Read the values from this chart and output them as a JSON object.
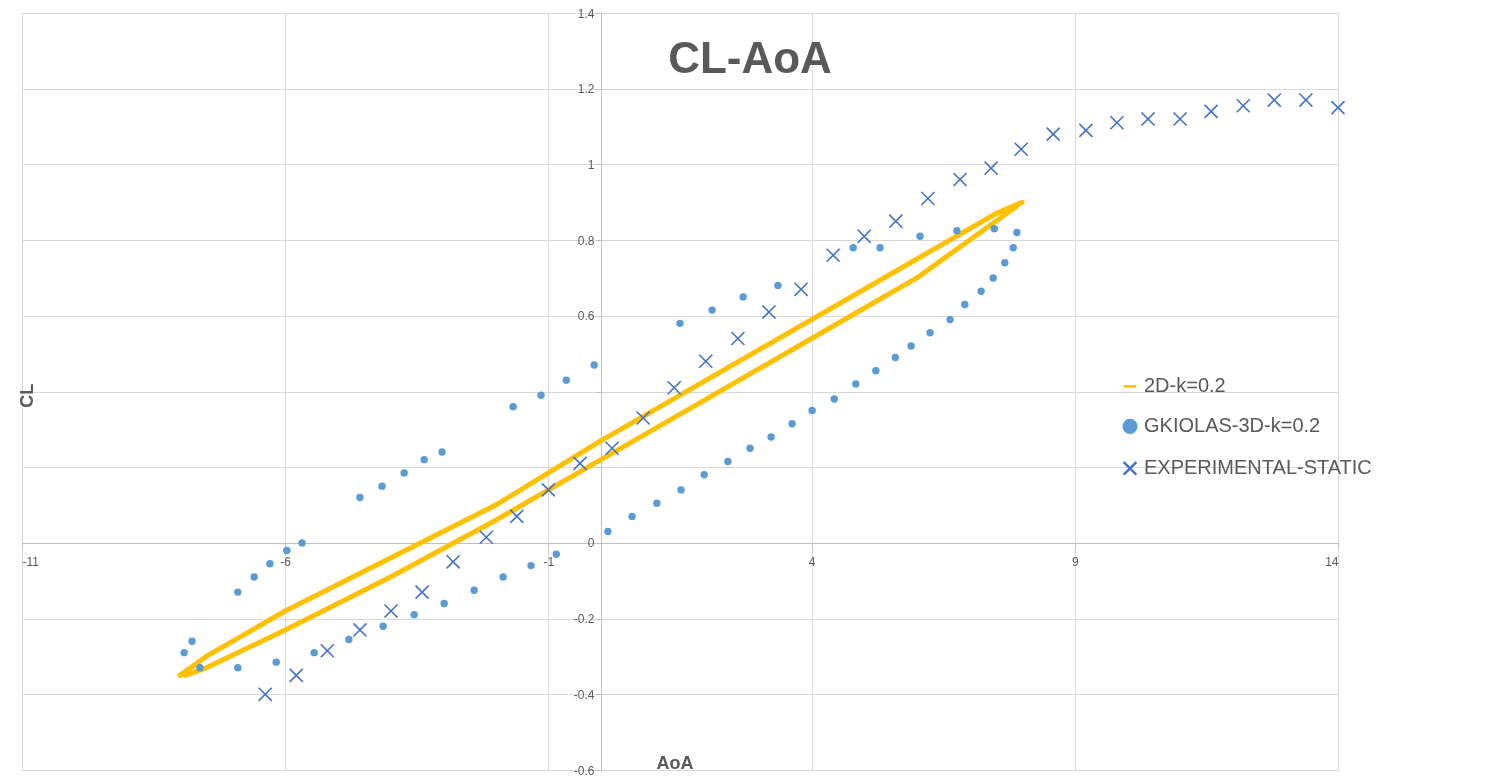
{
  "chart_data": {
    "type": "scatter",
    "title": "CL-AoA",
    "xlabel": "AoA",
    "ylabel": "CL",
    "xlim": [
      -11,
      14
    ],
    "xticks": [
      -11,
      -6,
      -1,
      4,
      9,
      14
    ],
    "ylim": [
      -0.6,
      1.4
    ],
    "yticks": [
      -0.6,
      -0.4,
      -0.2,
      0,
      {
        "value": 0.2,
        "label": null
      },
      {
        "value": 0.4,
        "label": null
      },
      0.6,
      0.8,
      1,
      1.2,
      1.4
    ],
    "grid": true,
    "legend": "right",
    "series": [
      {
        "name": "2D-k=0.2",
        "type": "line",
        "marker": "none",
        "line_style": "solid",
        "color": "#ffc000",
        "x": [
          -8,
          -7.5,
          -6,
          -4,
          -2,
          0,
          2,
          4,
          6,
          7.5,
          8
        ],
        "values": [
          -0.35,
          -0.3,
          -0.18,
          -0.04,
          0.1,
          0.27,
          0.43,
          0.59,
          0.75,
          0.87,
          0.9
        ]
      },
      {
        "type": "line",
        "marker": "none",
        "line_style": "solid",
        "color": "#ffc000",
        "x": [
          -7.9,
          -7.5,
          -6,
          -4,
          -2,
          0,
          2,
          4,
          6,
          7.5,
          7.9
        ],
        "values": [
          -0.35,
          -0.33,
          -0.23,
          -0.09,
          0.06,
          0.22,
          0.38,
          0.54,
          0.7,
          0.85,
          0.89
        ]
      },
      {
        "name": "GKIOLAS-3D-k=0.2",
        "type": "scatter",
        "marker": "circle",
        "color": "#5b9bd5",
        "x": [
          -7.92,
          -7.77,
          -7.62,
          -6.9,
          -6.9,
          -6.59,
          -6.29,
          -5.97,
          -5.68,
          -4.58,
          -4.16,
          -3.74,
          -3.36,
          -3.02,
          -1.67,
          -1.14,
          -0.66,
          -0.13,
          1.5,
          2.11,
          2.7,
          3.36,
          4.79,
          5.3,
          6.06,
          6.76,
          7.47,
          7.9,
          7.83,
          7.67,
          7.45,
          7.22,
          6.91,
          6.63,
          6.25,
          5.89,
          5.59,
          5.22,
          4.84,
          4.43,
          4.01,
          3.63,
          3.23,
          2.83,
          2.41,
          1.96,
          1.52,
          1.06,
          0.59,
          0.13,
          -0.85,
          -1.33,
          -1.86,
          -2.41,
          -2.98,
          -3.55,
          -4.14,
          -4.79,
          -5.45,
          -6.17
        ],
        "values": [
          -0.29,
          -0.26,
          -0.33,
          -0.33,
          -0.13,
          -0.09,
          -0.055,
          -0.02,
          0,
          0.12,
          0.15,
          0.185,
          0.22,
          0.24,
          0.36,
          0.39,
          0.43,
          0.47,
          0.58,
          0.615,
          0.65,
          0.68,
          0.78,
          0.78,
          0.81,
          0.825,
          0.83,
          0.82,
          0.78,
          0.74,
          0.7,
          0.665,
          0.63,
          0.59,
          0.555,
          0.52,
          0.49,
          0.455,
          0.42,
          0.38,
          0.35,
          0.315,
          0.28,
          0.25,
          0.215,
          0.18,
          0.14,
          0.105,
          0.07,
          0.03,
          -0.03,
          -0.06,
          -0.09,
          -0.125,
          -0.16,
          -0.19,
          -0.22,
          -0.255,
          -0.29,
          -0.315
        ]
      },
      {
        "name": "EXPERIMENTAL-STATIC",
        "type": "scatter",
        "marker": "cross",
        "color": "#4472c4",
        "x": [
          -6.38,
          -5.79,
          -5.2,
          -4.58,
          -3.99,
          -3.4,
          -2.81,
          -2.18,
          -1.6,
          -1,
          -0.4,
          0.21,
          0.8,
          1.39,
          1.99,
          2.6,
          3.19,
          3.8,
          4.41,
          5,
          5.6,
          6.21,
          6.82,
          7.41,
          7.98,
          8.59,
          9.21,
          9.8,
          10.39,
          11,
          11.59,
          12.2,
          12.79,
          13.39,
          14
        ],
        "values": [
          -0.4,
          -0.35,
          -0.285,
          -0.23,
          -0.18,
          -0.13,
          -0.05,
          0.015,
          0.07,
          0.14,
          0.21,
          0.25,
          0.33,
          0.41,
          0.48,
          0.54,
          0.61,
          0.67,
          0.76,
          0.81,
          0.85,
          0.91,
          0.96,
          0.99,
          1.04,
          1.08,
          1.09,
          1.11,
          1.12,
          1.12,
          1.14,
          1.155,
          1.17,
          1.17,
          1.15
        ]
      }
    ]
  }
}
